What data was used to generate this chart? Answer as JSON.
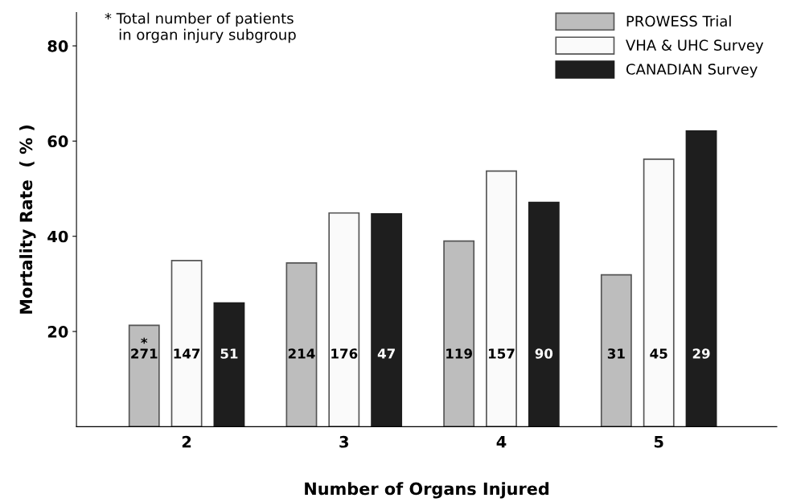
{
  "chart_data": {
    "type": "bar",
    "xlabel": "Number of Organs Injured",
    "ylabel": "Mortality Rate  ( % )",
    "categories": [
      "2",
      "3",
      "4",
      "5"
    ],
    "series": [
      {
        "name": "PROWESS Trial",
        "color": "#bdbdbd",
        "values": [
          21.3,
          34.4,
          39.0,
          31.9
        ]
      },
      {
        "name": "VHA & UHC Survey",
        "color": "#fafafa",
        "values": [
          34.9,
          44.9,
          53.7,
          56.2
        ]
      },
      {
        "name": "CANADIAN Survey",
        "color": "#1e1e1e",
        "values": [
          26.0,
          44.7,
          47.1,
          62.1
        ]
      }
    ],
    "annotations": [
      "* Total number of patients\n   in organ injury subgroup",
      "*\n271",
      "147",
      "51",
      "214",
      "176",
      "47",
      "119",
      "157",
      "90",
      "31",
      "45",
      "29"
    ],
    "ylim": [
      0,
      87
    ],
    "yticks": [
      20,
      40,
      60,
      80
    ],
    "legend": "top right",
    "grid": false
  }
}
